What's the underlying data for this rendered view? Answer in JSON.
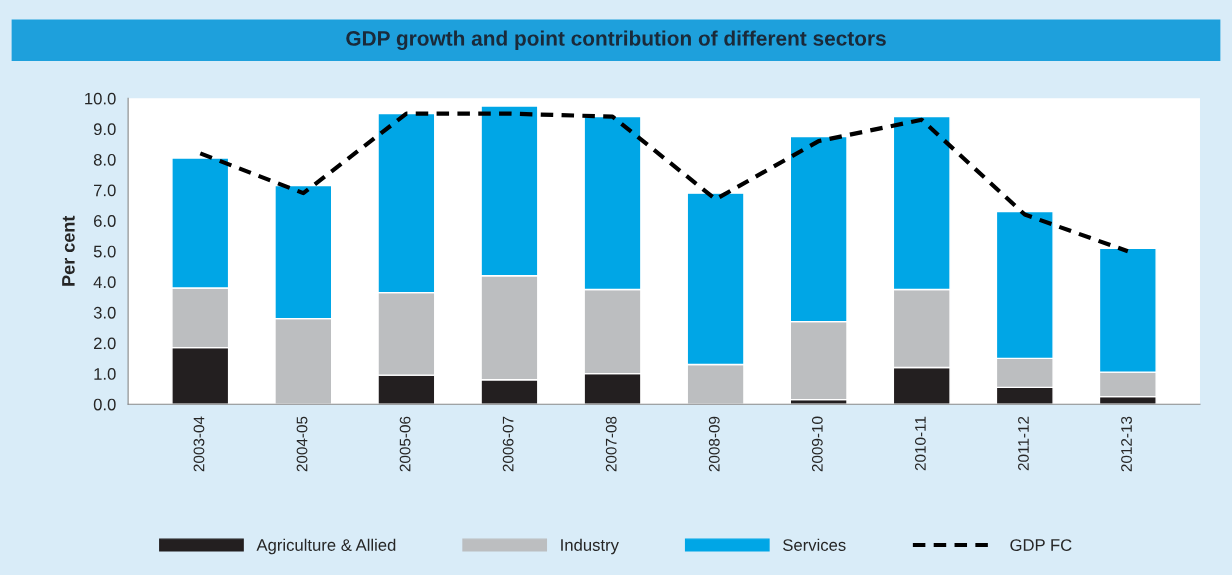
{
  "chart_data": {
    "type": "bar",
    "title": "GDP growth and point contribution of different sectors",
    "ylabel": "Per cent",
    "categories": [
      "2003-04",
      "2004-05",
      "2005-06",
      "2006-07",
      "2007-08",
      "2008-09",
      "2009-10",
      "2010-11",
      "2011-12",
      "2012-13"
    ],
    "stacked": true,
    "series": [
      {
        "name": "Agriculture & Allied",
        "color": "#231f20",
        "values": [
          1.85,
          0,
          0.95,
          0.8,
          1.0,
          0,
          0.15,
          1.2,
          0.55,
          0.25
        ]
      },
      {
        "name": "Industry",
        "color": "#bcbec0",
        "values": [
          1.95,
          2.8,
          2.7,
          3.4,
          2.75,
          1.3,
          2.55,
          2.55,
          0.95,
          0.8
        ]
      },
      {
        "name": "Services",
        "color": "#00a6e6",
        "values": [
          4.25,
          4.35,
          5.85,
          5.55,
          5.65,
          5.6,
          6.05,
          5.65,
          4.8,
          4.05
        ]
      },
      {
        "name": "GDP FC",
        "type": "line",
        "color": "#000000",
        "line_style": "dashed",
        "values": [
          8.2,
          6.9,
          9.5,
          9.5,
          9.4,
          6.7,
          8.6,
          9.3,
          6.2,
          5.0
        ]
      }
    ],
    "ylim": [
      0,
      10
    ],
    "yticks": [
      {
        "value": 0,
        "label": "0.0"
      },
      {
        "value": 1,
        "label": "1.0"
      },
      {
        "value": 2,
        "label": "2.0"
      },
      {
        "value": 3,
        "label": "3.0"
      },
      {
        "value": 4,
        "label": "4.0"
      },
      {
        "value": 5,
        "label": "5.0"
      },
      {
        "value": 6,
        "label": "6.0"
      },
      {
        "value": 7,
        "label": "7.0"
      },
      {
        "value": 8,
        "label": "8.0"
      },
      {
        "value": 9,
        "label": "9.0"
      },
      {
        "value": 10,
        "label": "10.0"
      }
    ],
    "grid": false,
    "legend": "bottom"
  }
}
